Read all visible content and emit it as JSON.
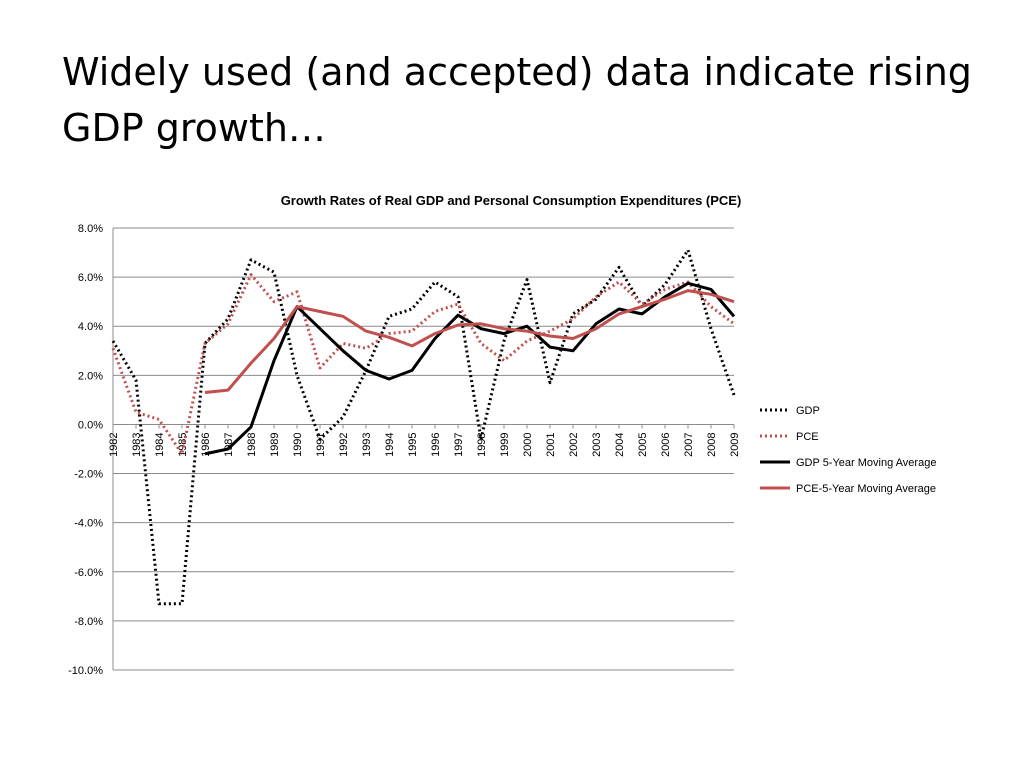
{
  "slide": {
    "title": "Widely used (and accepted) data indicate rising GDP growth…"
  },
  "chart_data": {
    "type": "line",
    "title": "Growth Rates of Real GDP and Personal Consumption Expenditures (PCE)",
    "xlabel": "",
    "ylabel": "",
    "ylim": [
      -10,
      8
    ],
    "y_ticks": [
      "8.0%",
      "6.0%",
      "4.0%",
      "2.0%",
      "0.0%",
      "-2.0%",
      "-4.0%",
      "-6.0%",
      "-8.0%",
      "-10.0%"
    ],
    "y_tick_values": [
      8,
      6,
      4,
      2,
      0,
      -2,
      -4,
      -6,
      -8,
      -10
    ],
    "grid": true,
    "legend_position": "right",
    "categories": [
      "1982",
      "1983",
      "1984",
      "1985",
      "1986",
      "1987",
      "1988",
      "1989",
      "1990",
      "1991",
      "1992",
      "1993",
      "1994",
      "1995",
      "1996",
      "1997",
      "1998",
      "1999",
      "2000",
      "2001",
      "2002",
      "2003",
      "2004",
      "2005",
      "2006",
      "2007",
      "2008",
      "2009"
    ],
    "series": [
      {
        "name": "GDP",
        "style": "dotted",
        "color": "#000000",
        "values": [
          3.4,
          1.8,
          -7.3,
          -7.3,
          3.3,
          4.3,
          6.7,
          6.2,
          2.0,
          -0.6,
          0.3,
          2.2,
          4.4,
          4.7,
          5.8,
          5.2,
          -0.6,
          3.4,
          5.9,
          1.7,
          4.5,
          5.1,
          6.4,
          4.8,
          5.7,
          7.1,
          3.9,
          1.2
        ]
      },
      {
        "name": "PCE",
        "style": "dotted",
        "color": "#c0504d",
        "values": [
          3.1,
          0.5,
          0.2,
          -1.2,
          3.3,
          4.1,
          6.1,
          5.0,
          5.4,
          2.3,
          3.3,
          3.1,
          3.7,
          3.8,
          4.6,
          4.9,
          3.3,
          2.6,
          3.4,
          3.8,
          4.3,
          5.2,
          5.8,
          4.9,
          5.5,
          5.8,
          4.8,
          4.1
        ]
      },
      {
        "name": "GDP 5-Year Moving Average",
        "style": "solid",
        "color": "#000000",
        "values": [
          null,
          null,
          null,
          null,
          -1.2,
          -1.0,
          -0.1,
          2.6,
          4.8,
          3.9,
          3.0,
          2.2,
          1.85,
          2.2,
          3.5,
          4.45,
          3.9,
          3.7,
          4.0,
          3.15,
          3.0,
          4.1,
          4.7,
          4.5,
          5.2,
          5.75,
          5.5,
          4.4
        ]
      },
      {
        "name": "PCE-5-Year Moving Average",
        "style": "solid",
        "color": "#c0504d",
        "values": [
          null,
          null,
          null,
          null,
          1.3,
          1.4,
          2.5,
          3.5,
          4.8,
          4.6,
          4.4,
          3.8,
          3.55,
          3.2,
          3.7,
          4.05,
          4.1,
          3.9,
          3.8,
          3.6,
          3.5,
          3.9,
          4.5,
          4.8,
          5.1,
          5.45,
          5.3,
          5.0
        ]
      }
    ]
  }
}
